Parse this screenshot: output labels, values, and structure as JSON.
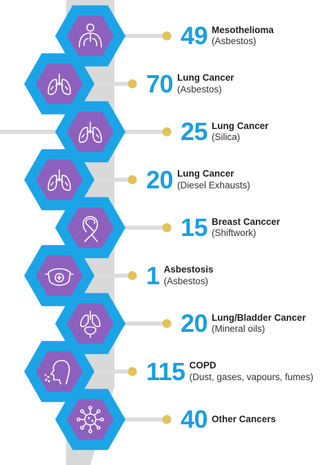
{
  "colors": {
    "hex_outer": "#1ba5e6",
    "hex_inner": "#8e60bd",
    "connector": "#dcdcdc",
    "dot": "#e3c25c",
    "number": "#1a9fe0",
    "spine": "#d9d9d9",
    "icon_stroke": "#ffffff"
  },
  "items": [
    {
      "number": "49",
      "label": "Mesothelioma",
      "sub": "(Asbestos)",
      "icon": "lungs-person-icon",
      "side": "right"
    },
    {
      "number": "70",
      "label": "Lung Cancer",
      "sub": "(Asbestos)",
      "icon": "lungs-icon",
      "side": "left"
    },
    {
      "number": "25",
      "label": "Lung Cancer",
      "sub": "(Silica)",
      "icon": "lungs-icon",
      "side": "right"
    },
    {
      "number": "20",
      "label": "Lung Cancer",
      "sub": "(Diesel Exhausts)",
      "icon": "lungs-icon",
      "side": "left"
    },
    {
      "number": "15",
      "label": "Breast Canccer",
      "sub": "(Shiftwork)",
      "icon": "ribbon-icon",
      "side": "right"
    },
    {
      "number": "1",
      "label": "Asbestosis",
      "sub": "(Asbestos)",
      "icon": "respirator-mask-icon",
      "side": "left"
    },
    {
      "number": "20",
      "label": "Lung/Bladder Cancer",
      "sub": "(Mineral oils)",
      "icon": "lungs-bladder-icon",
      "side": "right"
    },
    {
      "number": "115",
      "label": "COPD",
      "sub": "(Dust, gases, vapours, fumes)",
      "icon": "cough-person-icon",
      "side": "left"
    },
    {
      "number": "40",
      "label": "Other Cancers",
      "sub": "",
      "icon": "virus-cell-icon",
      "side": "right"
    }
  ]
}
